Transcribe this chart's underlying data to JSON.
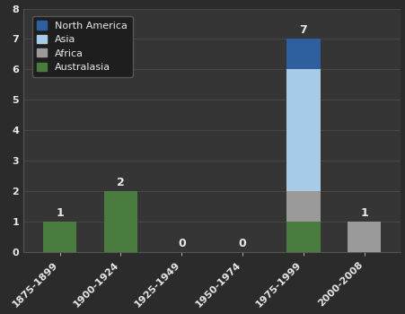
{
  "categories": [
    "1875-1899",
    "1900-1924",
    "1925-1949",
    "1950-1974",
    "1975-1999",
    "2000-2008"
  ],
  "series": {
    "Australasia": [
      1,
      2,
      0,
      0,
      1,
      0
    ],
    "Africa": [
      0,
      0,
      0,
      0,
      1,
      1
    ],
    "Asia": [
      0,
      0,
      0,
      0,
      4,
      0
    ],
    "North America": [
      0,
      0,
      0,
      0,
      1,
      0
    ]
  },
  "totals": [
    1,
    2,
    0,
    0,
    7,
    1
  ],
  "colors": {
    "Australasia": "#4a7c3f",
    "Africa": "#9a9a9a",
    "Asia": "#a8cce8",
    "North America": "#2e5f9e"
  },
  "ylim": [
    0,
    8
  ],
  "yticks": [
    0,
    1,
    2,
    3,
    4,
    5,
    6,
    7,
    8
  ],
  "background_color": "#2b2b2b",
  "plot_bg_color": "#353535",
  "text_color": "#e8e8e8",
  "grid_color": "#4a4a4a",
  "legend_bg": "#1e1e1e",
  "legend_order": [
    "North America",
    "Asia",
    "Africa",
    "Australasia"
  ],
  "bar_width": 0.55
}
